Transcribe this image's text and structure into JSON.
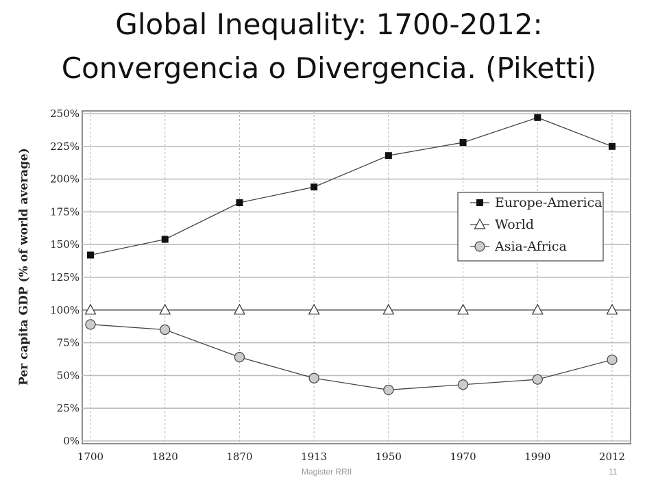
{
  "slide": {
    "title_line1": "Global Inequality: 1700-2012:",
    "title_line2": "Convergencia o Divergencia. (Piketti)",
    "footer_left": "Magister RRII",
    "footer_right": "11"
  },
  "chart_data": {
    "type": "line",
    "ylabel": "Per capita GDP (% of world average)",
    "categories": [
      "1700",
      "1820",
      "1870",
      "1913",
      "1950",
      "1970",
      "1990",
      "2012"
    ],
    "y_ticks": [
      "0%",
      "25%",
      "50%",
      "75%",
      "100%",
      "125%",
      "150%",
      "175%",
      "200%",
      "225%",
      "250%"
    ],
    "ylim": [
      0,
      250
    ],
    "grid": true,
    "legend_position": "right",
    "series": [
      {
        "name": "Europe-America",
        "marker": "square",
        "color": "#111111",
        "values": [
          142,
          154,
          182,
          194,
          218,
          228,
          247,
          225
        ]
      },
      {
        "name": "World",
        "marker": "triangle",
        "color": "#ffffff",
        "values": [
          100,
          100,
          100,
          100,
          100,
          100,
          100,
          100
        ]
      },
      {
        "name": "Asia-Africa",
        "marker": "circle",
        "color": "#cccccc",
        "values": [
          89,
          85,
          64,
          48,
          39,
          43,
          47,
          62
        ]
      }
    ]
  }
}
